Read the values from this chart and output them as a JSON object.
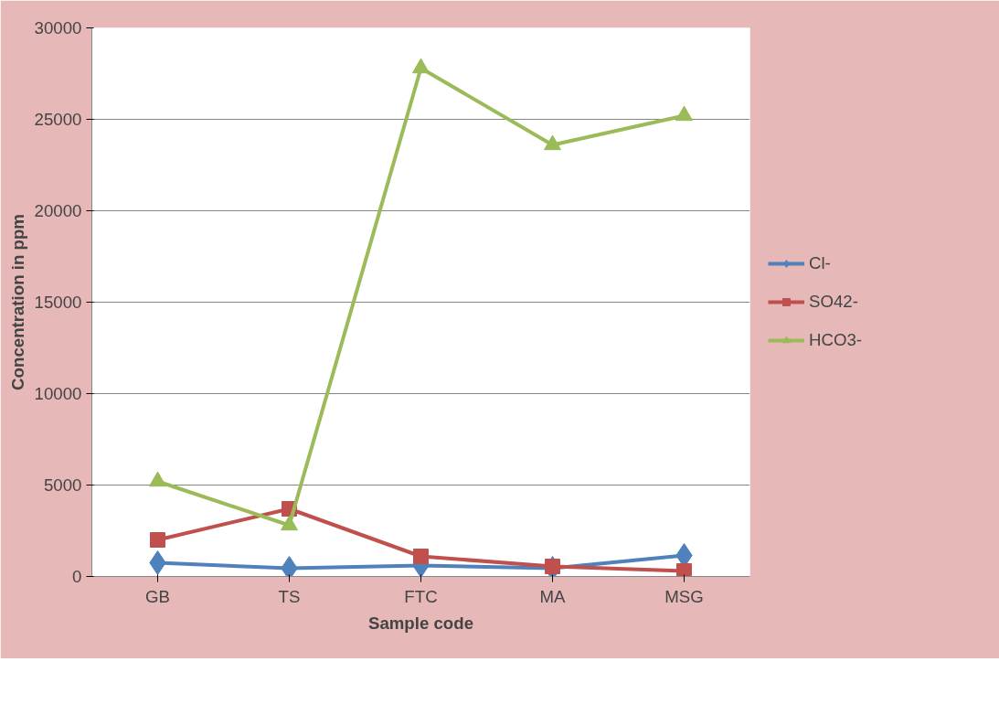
{
  "chart_data": {
    "type": "line",
    "xlabel": "Sample code",
    "ylabel": "Concentration in ppm",
    "categories": [
      "GB",
      "TS",
      "FTC",
      "MA",
      "MSG"
    ],
    "series": [
      {
        "name": "Cl-",
        "color": "#4f81bd",
        "marker": "diamond",
        "values": [
          750,
          450,
          600,
          450,
          1150
        ]
      },
      {
        "name": "SO42-",
        "color": "#c0504d",
        "marker": "square",
        "values": [
          2000,
          3700,
          1100,
          550,
          300
        ]
      },
      {
        "name": "HCO3-",
        "color": "#9bbb59",
        "marker": "triangle",
        "values": [
          5200,
          2800,
          27800,
          23600,
          25200
        ]
      }
    ],
    "ylim": [
      0,
      30000
    ],
    "yticks": [
      0,
      5000,
      10000,
      15000,
      20000,
      25000,
      30000
    ],
    "grid": "y",
    "legend": "right"
  }
}
